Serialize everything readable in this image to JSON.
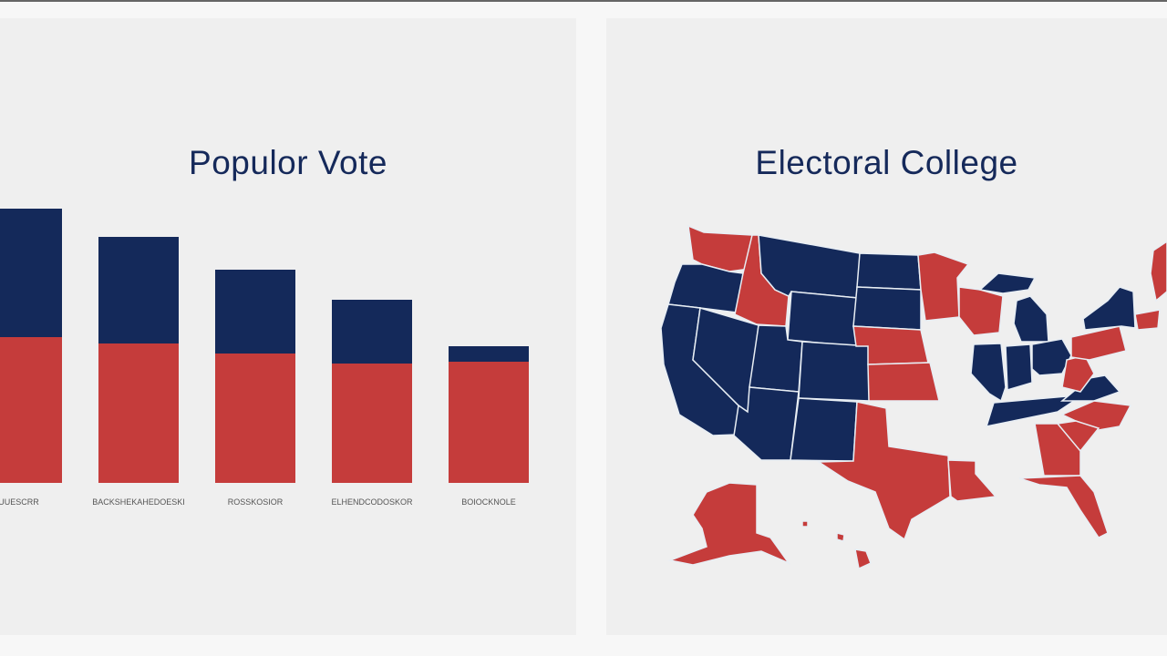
{
  "colors": {
    "blue": "#14295a",
    "red": "#c53c3b",
    "background": "#efefef"
  },
  "chart_data": [
    {
      "type": "bar",
      "stacked": true,
      "title": "Populor Vote",
      "categories": [
        "KOUUESCRR",
        "BACKSHEKAHEDOESKI",
        "ROSSKOSIOR",
        "ELHENDCODOSKOR",
        "BOIOCKNOLE"
      ],
      "series": [
        {
          "color": "red",
          "values": [
            160,
            153,
            142,
            131,
            133
          ]
        },
        {
          "color": "blue",
          "values": [
            141,
            117,
            92,
            70,
            17
          ]
        }
      ],
      "ylim": [
        0,
        320
      ],
      "grid": false,
      "axis_visible": false
    },
    {
      "type": "map",
      "title": "Electoral College",
      "region": "United States",
      "states": {
        "WA": "red",
        "OR": "blue",
        "CA": "blue",
        "NV": "blue",
        "ID": "red",
        "MT": "blue",
        "WY": "blue",
        "UT": "blue",
        "CO": "blue",
        "AZ": "blue",
        "NM": "blue",
        "ND": "blue",
        "SD": "blue",
        "NE": "red",
        "KS": "red",
        "TX": "red",
        "MN": "red",
        "WI": "red",
        "IL": "blue",
        "MI": "blue",
        "IN": "blue",
        "OH": "blue",
        "TN": "blue",
        "LA": "red",
        "GA": "red",
        "FL": "red",
        "SC": "red",
        "NC": "red",
        "VA": "blue",
        "WV": "red",
        "PA": "red",
        "NY": "blue",
        "NE_region": "red",
        "AK": "red",
        "HI": "red"
      }
    }
  ]
}
